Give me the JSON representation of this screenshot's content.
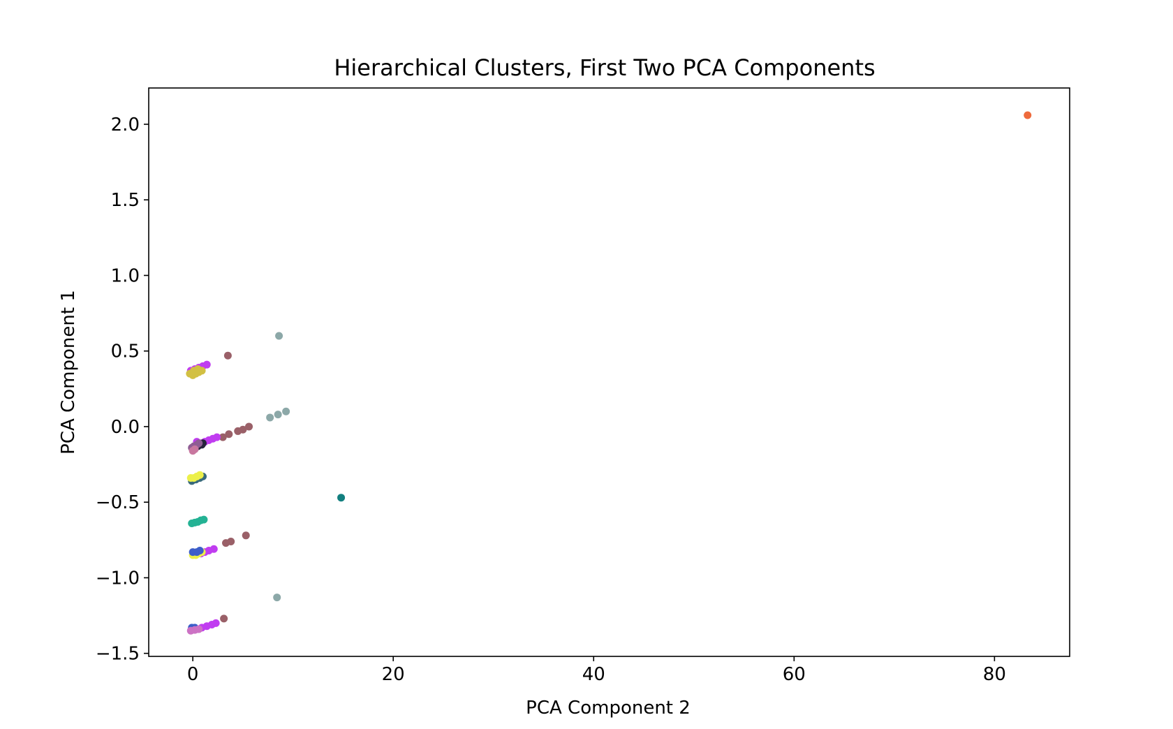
{
  "chart_data": {
    "type": "scatter",
    "title": "Hierarchical Clusters, First Two PCA Components",
    "xlabel": "PCA Component 2",
    "ylabel": "PCA Component 1",
    "xlim": [
      -4.4,
      87.5
    ],
    "ylim": [
      -1.52,
      2.24
    ],
    "x_ticks": [
      {
        "value": 0,
        "label": "0"
      },
      {
        "value": 20,
        "label": "20"
      },
      {
        "value": 40,
        "label": "40"
      },
      {
        "value": 60,
        "label": "60"
      },
      {
        "value": 80,
        "label": "80"
      }
    ],
    "y_ticks": [
      {
        "value": -1.5,
        "label": "−1.5"
      },
      {
        "value": -1.0,
        "label": "−1.0"
      },
      {
        "value": -0.5,
        "label": "−0.5"
      },
      {
        "value": 0.0,
        "label": "0.0"
      },
      {
        "value": 0.5,
        "label": "0.5"
      },
      {
        "value": 1.0,
        "label": "1.0"
      },
      {
        "value": 1.5,
        "label": "1.5"
      },
      {
        "value": 2.0,
        "label": "2.0"
      }
    ],
    "grid": false,
    "legend": "none",
    "series": [
      {
        "color": "#ee6a3c",
        "points": [
          [
            83.3,
            2.06
          ]
        ]
      },
      {
        "color": "#8ca8a8",
        "points": [
          [
            8.6,
            0.6
          ],
          [
            7.7,
            0.06
          ],
          [
            8.5,
            0.08
          ],
          [
            9.3,
            0.1
          ],
          [
            8.4,
            -1.13
          ]
        ]
      },
      {
        "color": "#9a6068",
        "points": [
          [
            3.5,
            0.47
          ],
          [
            3.0,
            -0.07
          ],
          [
            3.6,
            -0.05
          ],
          [
            4.5,
            -0.03
          ],
          [
            5.0,
            -0.02
          ],
          [
            5.6,
            0.0
          ],
          [
            3.3,
            -0.77
          ],
          [
            3.8,
            -0.76
          ],
          [
            5.3,
            -0.72
          ],
          [
            3.1,
            -1.27
          ]
        ]
      },
      {
        "color": "#127f7f",
        "points": [
          [
            14.8,
            -0.47
          ]
        ]
      },
      {
        "color": "#c03cf0",
        "points": [
          [
            -0.2,
            0.37
          ],
          [
            0.2,
            0.38
          ],
          [
            0.6,
            0.39
          ],
          [
            1.0,
            0.4
          ],
          [
            1.4,
            0.41
          ],
          [
            0.4,
            -0.1
          ],
          [
            0.8,
            -0.11
          ],
          [
            1.2,
            -0.1
          ],
          [
            1.6,
            -0.09
          ],
          [
            2.0,
            -0.08
          ],
          [
            2.4,
            -0.07
          ],
          [
            0.8,
            -0.84
          ],
          [
            1.2,
            -0.83
          ],
          [
            1.6,
            -0.82
          ],
          [
            2.1,
            -0.81
          ],
          [
            0.4,
            -1.34
          ],
          [
            0.9,
            -1.33
          ],
          [
            1.4,
            -1.32
          ],
          [
            1.9,
            -1.31
          ],
          [
            2.3,
            -1.3
          ]
        ]
      },
      {
        "color": "#d2c043",
        "points": [
          [
            -0.3,
            0.35
          ],
          [
            0.0,
            0.34
          ],
          [
            0.3,
            0.35
          ],
          [
            0.6,
            0.36
          ],
          [
            0.9,
            0.37
          ],
          [
            0.1,
            0.37
          ],
          [
            0.5,
            0.38
          ]
        ]
      },
      {
        "color": "#26233c",
        "points": [
          [
            0.5,
            -0.13
          ],
          [
            0.9,
            -0.12
          ],
          [
            1.0,
            -0.11
          ]
        ]
      },
      {
        "color": "#8f5d94",
        "points": [
          [
            -0.1,
            -0.14
          ],
          [
            0.1,
            -0.13
          ],
          [
            0.4,
            -0.12
          ],
          [
            0.6,
            -0.11
          ]
        ]
      },
      {
        "color": "#c8779f",
        "points": [
          [
            0.0,
            -0.16
          ],
          [
            0.2,
            -0.15
          ]
        ]
      },
      {
        "color": "#3a6b7c",
        "points": [
          [
            -0.1,
            -0.36
          ],
          [
            0.3,
            -0.35
          ],
          [
            0.7,
            -0.34
          ],
          [
            1.0,
            -0.33
          ]
        ]
      },
      {
        "color": "#ecf04a",
        "points": [
          [
            -0.2,
            -0.34
          ],
          [
            0.1,
            -0.34
          ],
          [
            0.4,
            -0.33
          ],
          [
            0.7,
            -0.32
          ],
          [
            0.0,
            -0.85
          ],
          [
            0.3,
            -0.85
          ],
          [
            0.6,
            -0.84
          ],
          [
            0.9,
            -0.83
          ]
        ]
      },
      {
        "color": "#24b294",
        "points": [
          [
            -0.1,
            -0.64
          ],
          [
            0.2,
            -0.635
          ],
          [
            0.5,
            -0.63
          ],
          [
            0.8,
            -0.62
          ],
          [
            1.1,
            -0.615
          ]
        ]
      },
      {
        "color": "#3c5ec9",
        "points": [
          [
            0.0,
            -0.83
          ],
          [
            0.4,
            -0.83
          ],
          [
            0.7,
            -0.82
          ],
          [
            -0.1,
            -1.33
          ],
          [
            0.2,
            -1.33
          ]
        ]
      },
      {
        "color": "#cc72c4",
        "points": [
          [
            -0.2,
            -1.35
          ],
          [
            0.2,
            -1.345
          ],
          [
            0.6,
            -1.34
          ]
        ]
      }
    ]
  }
}
